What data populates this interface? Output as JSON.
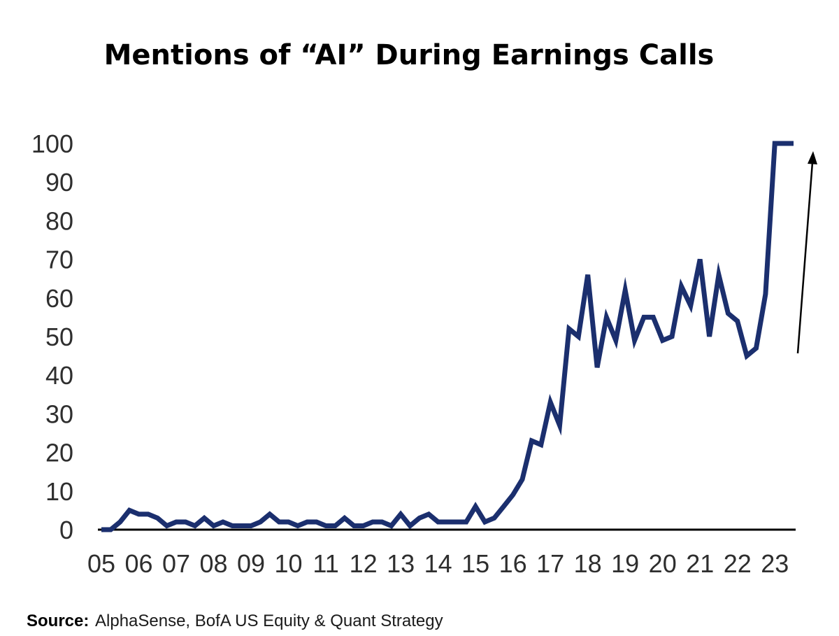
{
  "colors": {
    "line": "#1b2f6e",
    "axis": "#000000",
    "arrow": "#000000"
  },
  "chart_data": {
    "type": "line",
    "title": "Mentions of “AI” During Earnings Calls",
    "xlabel": "",
    "ylabel": "",
    "x_tick_labels": [
      "05",
      "06",
      "07",
      "08",
      "09",
      "10",
      "11",
      "12",
      "13",
      "14",
      "15",
      "16",
      "17",
      "18",
      "19",
      "20",
      "21",
      "22",
      "23"
    ],
    "y_tick_labels": [
      "100",
      "90",
      "80",
      "70",
      "60",
      "50",
      "40",
      "30",
      "20",
      "10",
      "0"
    ],
    "ylim": [
      0,
      100
    ],
    "xlim": [
      2005,
      2023.5
    ],
    "grid": false,
    "legend": "none",
    "annotation": "upward arrow beside final value",
    "series": [
      {
        "x": [
          2005.0,
          2005.25,
          2005.5,
          2005.75,
          2006.0,
          2006.25,
          2006.5,
          2006.75,
          2007.0,
          2007.25,
          2007.5,
          2007.75,
          2008.0,
          2008.25,
          2008.5,
          2008.75,
          2009.0,
          2009.25,
          2009.5,
          2009.75,
          2010.0,
          2010.25,
          2010.5,
          2010.75,
          2011.0,
          2011.25,
          2011.5,
          2011.75,
          2012.0,
          2012.25,
          2012.5,
          2012.75,
          2013.0,
          2013.25,
          2013.5,
          2013.75,
          2014.0,
          2014.25,
          2014.5,
          2014.75,
          2015.0,
          2015.25,
          2015.5,
          2015.75,
          2016.0,
          2016.25,
          2016.5,
          2016.75,
          2017.0,
          2017.25,
          2017.5,
          2017.75,
          2018.0,
          2018.25,
          2018.5,
          2018.75,
          2019.0,
          2019.25,
          2019.5,
          2019.75,
          2020.0,
          2020.25,
          2020.5,
          2020.75,
          2021.0,
          2021.25,
          2021.5,
          2021.75,
          2022.0,
          2022.25,
          2022.5,
          2022.75,
          2023.0,
          2023.25,
          2023.5
        ],
        "values": [
          0,
          0,
          2,
          5,
          4,
          4,
          3,
          1,
          2,
          2,
          1,
          3,
          1,
          2,
          1,
          1,
          1,
          2,
          4,
          2,
          2,
          1,
          2,
          2,
          1,
          1,
          3,
          1,
          1,
          2,
          2,
          1,
          4,
          1,
          3,
          4,
          2,
          2,
          2,
          2,
          6,
          2,
          3,
          6,
          9,
          13,
          23,
          22,
          33,
          27,
          52,
          50,
          66,
          42,
          55,
          49,
          62,
          49,
          55,
          55,
          49,
          50,
          63,
          58,
          70,
          50,
          66,
          56,
          54,
          45,
          47,
          61,
          100,
          100,
          100
        ]
      }
    ]
  },
  "source": {
    "label": "Source:",
    "text": "AlphaSense, BofA US Equity & Quant Strategy"
  }
}
